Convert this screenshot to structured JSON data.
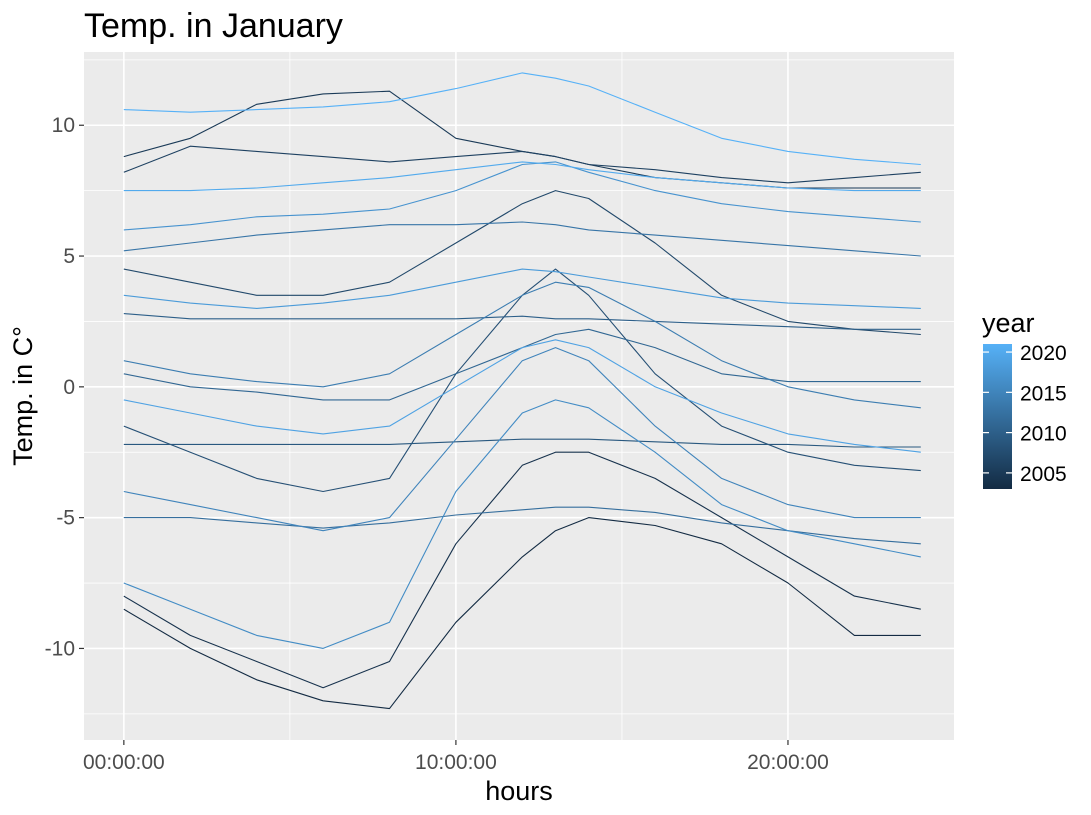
{
  "chart_data": {
    "type": "line",
    "title": "Temp. in January",
    "xlabel": "hours",
    "ylabel": "Temp. in C°",
    "xlim_hours": [
      -1.2,
      25.0
    ],
    "ylim": [
      -13.5,
      12.8
    ],
    "x_ticks": [
      {
        "value": 0,
        "label": "00:00:00"
      },
      {
        "value": 10,
        "label": "10:00:00"
      },
      {
        "value": 20,
        "label": "20:00:00"
      }
    ],
    "y_ticks": [
      {
        "value": 10,
        "label": "10"
      },
      {
        "value": 5,
        "label": "5"
      },
      {
        "value": 0,
        "label": "0"
      },
      {
        "value": -5,
        "label": "-5"
      },
      {
        "value": -10,
        "label": "-10"
      }
    ],
    "grid": true,
    "background": "#ebebeb",
    "legend": {
      "title": "year",
      "placement": "right",
      "type": "colorbar",
      "range": [
        2003,
        2021
      ],
      "ticks": [
        {
          "value": 2020,
          "label": "2020"
        },
        {
          "value": 2015,
          "label": "2015"
        },
        {
          "value": 2010,
          "label": "2010"
        },
        {
          "value": 2005,
          "label": "2005"
        }
      ],
      "color_low": "#132b43",
      "color_high": "#56b1f7"
    },
    "x": [
      0,
      2,
      4,
      6,
      8,
      10,
      12,
      13,
      14,
      16,
      18,
      20,
      22,
      24
    ],
    "series": [
      {
        "year": 2003,
        "values": [
          -8.5,
          -10.0,
          -11.2,
          -12.0,
          -12.3,
          -9.0,
          -6.5,
          -5.5,
          -5.0,
          -5.3,
          -6.0,
          -7.5,
          -9.5,
          -9.5
        ]
      },
      {
        "year": 2004,
        "values": [
          -8.0,
          -9.5,
          -10.5,
          -11.5,
          -10.5,
          -6.0,
          -3.0,
          -2.5,
          -2.5,
          -3.5,
          -5.0,
          -6.5,
          -8.0,
          -8.5
        ]
      },
      {
        "year": 2005,
        "values": [
          8.8,
          9.5,
          10.8,
          11.2,
          11.3,
          9.5,
          9.0,
          8.8,
          8.5,
          8.0,
          7.8,
          7.6,
          7.6,
          7.6
        ]
      },
      {
        "year": 2006,
        "values": [
          8.2,
          9.2,
          9.0,
          8.8,
          8.6,
          8.8,
          9.0,
          8.8,
          8.5,
          8.3,
          8.0,
          7.8,
          8.0,
          8.2
        ]
      },
      {
        "year": 2007,
        "values": [
          4.5,
          4.0,
          3.5,
          3.5,
          4.0,
          5.5,
          7.0,
          7.5,
          7.2,
          5.5,
          3.5,
          2.5,
          2.2,
          2.0
        ]
      },
      {
        "year": 2008,
        "values": [
          -1.5,
          -2.5,
          -3.5,
          -4.0,
          -3.5,
          0.5,
          3.5,
          4.5,
          3.5,
          0.5,
          -1.5,
          -2.5,
          -3.0,
          -3.2
        ]
      },
      {
        "year": 2009,
        "values": [
          -2.2,
          -2.2,
          -2.2,
          -2.2,
          -2.2,
          -2.1,
          -2.0,
          -2.0,
          -2.0,
          -2.1,
          -2.2,
          -2.2,
          -2.3,
          -2.3
        ]
      },
      {
        "year": 2010,
        "values": [
          2.8,
          2.6,
          2.6,
          2.6,
          2.6,
          2.6,
          2.7,
          2.6,
          2.6,
          2.5,
          2.4,
          2.3,
          2.2,
          2.2
        ]
      },
      {
        "year": 2011,
        "values": [
          0.5,
          0.0,
          -0.2,
          -0.5,
          -0.5,
          0.5,
          1.5,
          2.0,
          2.2,
          1.5,
          0.5,
          0.2,
          0.2,
          0.2
        ]
      },
      {
        "year": 2012,
        "values": [
          -5.0,
          -5.0,
          -5.2,
          -5.4,
          -5.2,
          -4.9,
          -4.7,
          -4.6,
          -4.6,
          -4.8,
          -5.2,
          -5.5,
          -5.8,
          -6.0
        ]
      },
      {
        "year": 2013,
        "values": [
          5.2,
          5.5,
          5.8,
          6.0,
          6.2,
          6.2,
          6.3,
          6.2,
          6.0,
          5.8,
          5.6,
          5.4,
          5.2,
          5.0
        ]
      },
      {
        "year": 2014,
        "values": [
          1.0,
          0.5,
          0.2,
          0.0,
          0.5,
          2.0,
          3.5,
          4.0,
          3.8,
          2.5,
          1.0,
          0.0,
          -0.5,
          -0.8
        ]
      },
      {
        "year": 2015,
        "values": [
          -4.0,
          -4.5,
          -5.0,
          -5.5,
          -5.0,
          -2.0,
          1.0,
          1.5,
          1.0,
          -1.5,
          -3.5,
          -4.5,
          -5.0,
          -5.0
        ]
      },
      {
        "year": 2016,
        "values": [
          -7.5,
          -8.5,
          -9.5,
          -10.0,
          -9.0,
          -4.0,
          -1.0,
          -0.5,
          -0.8,
          -2.5,
          -4.5,
          -5.5,
          -6.0,
          -6.5
        ]
      },
      {
        "year": 2017,
        "values": [
          6.0,
          6.2,
          6.5,
          6.6,
          6.8,
          7.5,
          8.5,
          8.6,
          8.2,
          7.5,
          7.0,
          6.7,
          6.5,
          6.3
        ]
      },
      {
        "year": 2018,
        "values": [
          3.5,
          3.2,
          3.0,
          3.2,
          3.5,
          4.0,
          4.5,
          4.4,
          4.2,
          3.8,
          3.4,
          3.2,
          3.1,
          3.0
        ]
      },
      {
        "year": 2019,
        "values": [
          -0.5,
          -1.0,
          -1.5,
          -1.8,
          -1.5,
          0.0,
          1.5,
          1.8,
          1.5,
          0.0,
          -1.0,
          -1.8,
          -2.2,
          -2.5
        ]
      },
      {
        "year": 2020,
        "values": [
          7.5,
          7.5,
          7.6,
          7.8,
          8.0,
          8.3,
          8.6,
          8.5,
          8.3,
          8.0,
          7.8,
          7.6,
          7.5,
          7.5
        ]
      },
      {
        "year": 2021,
        "values": [
          10.6,
          10.5,
          10.6,
          10.7,
          10.9,
          11.4,
          12.0,
          11.8,
          11.5,
          10.5,
          9.5,
          9.0,
          8.7,
          8.5
        ]
      }
    ]
  }
}
